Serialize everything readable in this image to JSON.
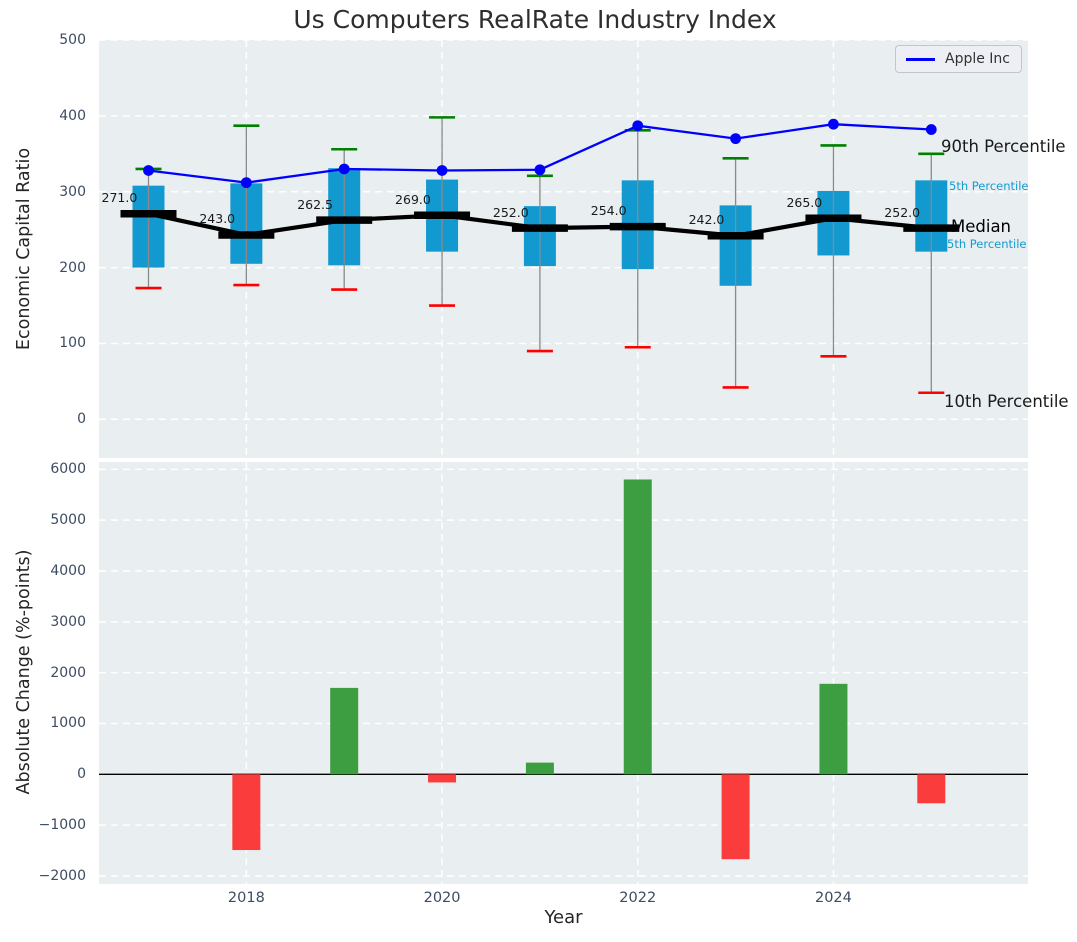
{
  "figure": {
    "title": "Us Computers RealRate Industry Index"
  },
  "top_chart": {
    "ylabel": "Economic Capital Ratio",
    "ylim": [
      -51,
      500
    ],
    "yticks": {
      "values": [
        0,
        100,
        200,
        300,
        400,
        500
      ],
      "labels": [
        "0",
        "100",
        "200",
        "300",
        "400",
        "500"
      ]
    },
    "grid_years": [
      2018,
      2020,
      2022,
      2024
    ],
    "legend": {
      "label": "Apple Inc"
    },
    "side_labels": [
      {
        "text": "90th Percentile",
        "value": 358,
        "size": 16.5,
        "color": "#1a1a1a",
        "x": 941
      },
      {
        "text": "5th Percentile",
        "value": 306,
        "size": 11.5,
        "color": "#129bd3",
        "x": 949
      },
      {
        "text": "Median",
        "value": 252,
        "size": 16.5,
        "color": "#000000",
        "x": 951
      },
      {
        "text": "5th Percentile",
        "value": 230,
        "size": 11.5,
        "color": "#129bd3",
        "x": 947
      },
      {
        "text": "10th Percentile",
        "value": 21,
        "size": 16.5,
        "color": "#1a1a1a",
        "x": 944
      }
    ]
  },
  "bottom_chart": {
    "ylabel": "Absolute Change (%-points)",
    "xlabel": "Year",
    "ylim": [
      -2158,
      6144
    ],
    "yticks": {
      "values": [
        -2000,
        -1000,
        0,
        1000,
        2000,
        3000,
        4000,
        5000,
        6000
      ],
      "labels": [
        "−2000",
        "−1000",
        "0",
        "1000",
        "2000",
        "3000",
        "4000",
        "5000",
        "6000"
      ]
    },
    "xticks": {
      "values": [
        2018,
        2020,
        2022,
        2024
      ],
      "labels": [
        "2018",
        "2020",
        "2022",
        "2024"
      ]
    },
    "grid_years": [
      2018,
      2020,
      2022,
      2024
    ]
  },
  "chart_data": [
    {
      "type": "boxplot+line",
      "title": "Us Computers RealRate Industry Index",
      "ylabel": "Economic Capital Ratio",
      "x": [
        2017,
        2018,
        2019,
        2020,
        2021,
        2022,
        2023,
        2024,
        2025
      ],
      "box": {
        "q3": [
          308,
          311,
          331,
          316,
          281,
          315,
          282,
          301,
          315
        ],
        "q1": [
          200,
          205,
          203,
          221,
          202,
          198,
          176,
          216,
          221
        ],
        "median": [
          271.0,
          243.0,
          262.5,
          269.0,
          252.0,
          254.0,
          242.0,
          265.0,
          252.0
        ],
        "whisker_high_90th": [
          330,
          387,
          356,
          398,
          321,
          381,
          344,
          361,
          350
        ],
        "whisker_low_10th": [
          173,
          177,
          171,
          150,
          90,
          95,
          42,
          83,
          35
        ]
      },
      "median_labels": [
        "271.0",
        "243.0",
        "262.5",
        "269.0",
        "252.0",
        "254.0",
        "242.0",
        "265.0",
        "252.0"
      ],
      "series": [
        {
          "name": "Apple Inc",
          "type": "line",
          "values": [
            328,
            312,
            330,
            328,
            329,
            387,
            370,
            389,
            382
          ]
        }
      ],
      "legend_position": "upper right",
      "grid": true
    },
    {
      "type": "bar",
      "ylabel": "Absolute Change (%-points)",
      "xlabel": "Year",
      "x": [
        2017,
        2018,
        2019,
        2020,
        2021,
        2022,
        2023,
        2024,
        2025
      ],
      "values": [
        null,
        -1490,
        1700,
        -160,
        230,
        5800,
        -1670,
        1780,
        -570
      ],
      "ylim": [
        -2158,
        6144
      ],
      "grid": true
    }
  ],
  "style": {
    "axes_bg": "#e9eef0",
    "grid_color": "#ffffff",
    "box_fill": "#129ad0",
    "whisker_color": "#8a8a8a",
    "cap_high_color": "#008000",
    "cap_low_color": "#ff0000",
    "median_color": "#000000",
    "apple_line_color": "#0000ff",
    "bar_positive": "#3c9e40",
    "bar_negative": "#fa3c3c",
    "tick_color": "#3d4c62",
    "zero_line_color": "#000000",
    "median_label_color": "#1a1a1a"
  }
}
